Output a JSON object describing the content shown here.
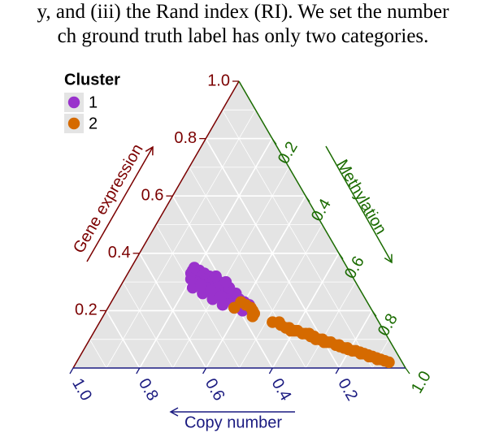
{
  "text_above": [
    "y, and (iii) the Rand index (RI). We set the number",
    "ch ground truth label has only two categories."
  ],
  "chart_data": {
    "type": "scatter",
    "subtype": "ternary",
    "axes": {
      "left": {
        "label": "Gene expression",
        "color": "#7b0000",
        "ticks": [
          "0.2",
          "0.4",
          "0.6",
          "0.8",
          "1.0"
        ]
      },
      "right": {
        "label": "Methylation",
        "color": "#1a6b00",
        "ticks": [
          "0.2",
          "0.4",
          "0.6",
          "0.8",
          "1.0"
        ]
      },
      "bottom": {
        "label": "Copy number",
        "color": "#1a1a80",
        "ticks": [
          "1.0",
          "0.8",
          "0.6",
          "0.4",
          "0.2"
        ]
      }
    },
    "grid": true,
    "legend": {
      "title": "Cluster",
      "position": "top-left"
    },
    "series": [
      {
        "name": "1",
        "color": "#9932cc",
        "points": [
          [
            0.23,
            0.37,
            0.4
          ],
          [
            0.24,
            0.38,
            0.38
          ],
          [
            0.25,
            0.39,
            0.36
          ],
          [
            0.26,
            0.4,
            0.34
          ],
          [
            0.27,
            0.41,
            0.32
          ],
          [
            0.28,
            0.42,
            0.3
          ],
          [
            0.29,
            0.43,
            0.28
          ],
          [
            0.3,
            0.44,
            0.26
          ],
          [
            0.31,
            0.45,
            0.24
          ],
          [
            0.32,
            0.46,
            0.22
          ],
          [
            0.33,
            0.47,
            0.2
          ],
          [
            0.25,
            0.41,
            0.34
          ],
          [
            0.27,
            0.43,
            0.3
          ],
          [
            0.29,
            0.45,
            0.26
          ],
          [
            0.31,
            0.47,
            0.22
          ],
          [
            0.22,
            0.4,
            0.38
          ],
          [
            0.24,
            0.42,
            0.34
          ],
          [
            0.26,
            0.44,
            0.3
          ],
          [
            0.28,
            0.46,
            0.26
          ],
          [
            0.3,
            0.48,
            0.22
          ],
          [
            0.23,
            0.43,
            0.34
          ],
          [
            0.25,
            0.45,
            0.3
          ],
          [
            0.27,
            0.47,
            0.26
          ],
          [
            0.29,
            0.49,
            0.22
          ],
          [
            0.21,
            0.41,
            0.38
          ],
          [
            0.22,
            0.44,
            0.34
          ],
          [
            0.24,
            0.46,
            0.3
          ],
          [
            0.26,
            0.48,
            0.26
          ],
          [
            0.28,
            0.5,
            0.22
          ],
          [
            0.32,
            0.43,
            0.25
          ],
          [
            0.33,
            0.44,
            0.23
          ],
          [
            0.34,
            0.45,
            0.21
          ],
          [
            0.3,
            0.41,
            0.29
          ],
          [
            0.32,
            0.41,
            0.27
          ],
          [
            0.21,
            0.38,
            0.41
          ],
          [
            0.2,
            0.39,
            0.41
          ],
          [
            0.23,
            0.4,
            0.37
          ],
          [
            0.25,
            0.43,
            0.32
          ],
          [
            0.27,
            0.45,
            0.28
          ],
          [
            0.29,
            0.47,
            0.24
          ],
          [
            0.31,
            0.49,
            0.2
          ],
          [
            0.33,
            0.48,
            0.19
          ],
          [
            0.34,
            0.47,
            0.19
          ],
          [
            0.35,
            0.46,
            0.19
          ],
          [
            0.26,
            0.38,
            0.36
          ],
          [
            0.28,
            0.39,
            0.33
          ],
          [
            0.3,
            0.39,
            0.31
          ],
          [
            0.22,
            0.36,
            0.42
          ]
        ]
      },
      {
        "name": "2",
        "color": "#d56a00",
        "points": [
          [
            0.2,
            0.36,
            0.44
          ],
          [
            0.21,
            0.36,
            0.43
          ],
          [
            0.22,
            0.37,
            0.41
          ],
          [
            0.23,
            0.38,
            0.39
          ],
          [
            0.19,
            0.36,
            0.45
          ],
          [
            0.21,
            0.41,
            0.38
          ],
          [
            0.18,
            0.37,
            0.45
          ],
          [
            0.2,
            0.36,
            0.44
          ],
          [
            0.16,
            0.32,
            0.52
          ],
          [
            0.16,
            0.3,
            0.54
          ],
          [
            0.15,
            0.3,
            0.55
          ],
          [
            0.14,
            0.28,
            0.58
          ],
          [
            0.13,
            0.28,
            0.59
          ],
          [
            0.13,
            0.26,
            0.61
          ],
          [
            0.12,
            0.25,
            0.63
          ],
          [
            0.12,
            0.24,
            0.64
          ],
          [
            0.11,
            0.23,
            0.66
          ],
          [
            0.1,
            0.22,
            0.68
          ],
          [
            0.1,
            0.2,
            0.7
          ],
          [
            0.09,
            0.2,
            0.71
          ],
          [
            0.09,
            0.18,
            0.73
          ],
          [
            0.08,
            0.17,
            0.75
          ],
          [
            0.075,
            0.16,
            0.765
          ],
          [
            0.07,
            0.15,
            0.78
          ],
          [
            0.065,
            0.14,
            0.795
          ],
          [
            0.06,
            0.12,
            0.82
          ],
          [
            0.055,
            0.11,
            0.835
          ],
          [
            0.05,
            0.1,
            0.85
          ],
          [
            0.045,
            0.09,
            0.865
          ],
          [
            0.04,
            0.08,
            0.88
          ],
          [
            0.035,
            0.07,
            0.895
          ],
          [
            0.03,
            0.06,
            0.91
          ],
          [
            0.025,
            0.05,
            0.925
          ],
          [
            0.02,
            0.04,
            0.94
          ],
          [
            0.11,
            0.22,
            0.67
          ],
          [
            0.09,
            0.19,
            0.72
          ],
          [
            0.07,
            0.14,
            0.79
          ],
          [
            0.05,
            0.11,
            0.84
          ],
          [
            0.13,
            0.27,
            0.6
          ],
          [
            0.1,
            0.21,
            0.69
          ],
          [
            0.14,
            0.29,
            0.57
          ],
          [
            0.06,
            0.13,
            0.81
          ],
          [
            0.04,
            0.09,
            0.87
          ],
          [
            0.08,
            0.16,
            0.76
          ],
          [
            0.12,
            0.23,
            0.65
          ],
          [
            0.03,
            0.07,
            0.9
          ]
        ]
      }
    ]
  }
}
